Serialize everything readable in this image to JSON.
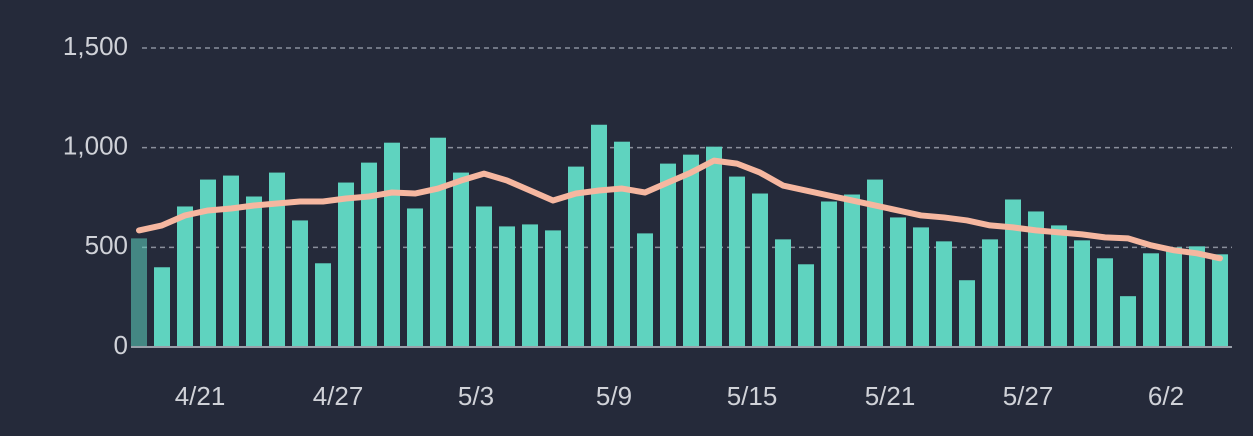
{
  "chart_data": {
    "type": "bar",
    "categories": [
      null,
      null,
      null,
      "4/21",
      null,
      null,
      null,
      null,
      null,
      "4/27",
      null,
      null,
      null,
      null,
      null,
      "5/3",
      null,
      null,
      null,
      null,
      null,
      "5/9",
      null,
      null,
      null,
      null,
      null,
      "5/15",
      null,
      null,
      null,
      null,
      null,
      "5/21",
      null,
      null,
      null,
      null,
      null,
      "5/27",
      null,
      null,
      null,
      null,
      null,
      "6/2",
      null,
      null
    ],
    "series": [
      {
        "color": "#5fd3bf",
        "values": [
          545,
          400,
          705,
          840,
          860,
          755,
          875,
          635,
          420,
          825,
          925,
          1025,
          695,
          1050,
          875,
          705,
          605,
          615,
          585,
          905,
          1115,
          1030,
          570,
          920,
          965,
          1005,
          855,
          770,
          540,
          415,
          730,
          765,
          840,
          650,
          600,
          530,
          335,
          540,
          740,
          680,
          610,
          535,
          445,
          255,
          470,
          500,
          505,
          465
        ]
      },
      {
        "type": "line",
        "color": "#f6b7a0",
        "values": [
          585,
          610,
          660,
          685,
          695,
          710,
          720,
          730,
          730,
          745,
          755,
          775,
          770,
          795,
          835,
          870,
          835,
          785,
          735,
          770,
          785,
          795,
          775,
          825,
          875,
          935,
          920,
          875,
          810,
          785,
          760,
          735,
          710,
          685,
          660,
          650,
          635,
          610,
          600,
          585,
          575,
          565,
          550,
          545,
          510,
          485,
          470,
          445
        ]
      }
    ],
    "ylim": [
      0,
      1500
    ],
    "yticks": [
      0,
      500,
      {
        "value": 1000,
        "label": "1,000"
      },
      {
        "value": 1500,
        "label": "1,500"
      }
    ],
    "grid": true
  }
}
